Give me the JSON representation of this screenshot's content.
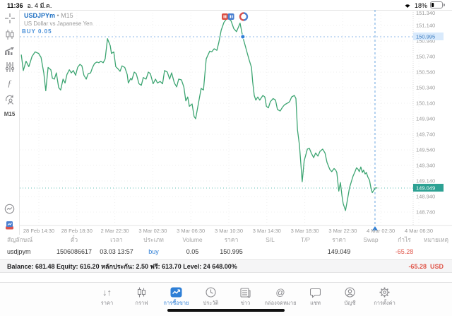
{
  "status_bar": {
    "time": "11:36",
    "date": "อ. 4 มี.ค.",
    "battery": "18%"
  },
  "chart": {
    "symbol": "USDJPYm",
    "timeframe": "M15",
    "title_suffix": "• M15",
    "description": "US Dollar vs Japanese Yen",
    "position_label": "BUY 0.05",
    "open_price_label": "150.995",
    "current_price_label": "149.049",
    "sidebar_timeframe": "M15"
  },
  "chart_data": {
    "type": "line",
    "title": "USDJPYm M15 line chart",
    "ylabel": "price",
    "ylim": [
      148.64,
      151.36
    ],
    "grid": true,
    "y_ticks": [
      "151.340",
      "151.140",
      "150.940",
      "150.740",
      "150.540",
      "150.340",
      "150.140",
      "149.940",
      "149.740",
      "149.540",
      "149.340",
      "149.140",
      "148.940",
      "148.740"
    ],
    "x_ticks": [
      "28 Feb 14:30",
      "28 Feb 18:30",
      "2 Mar 22:30",
      "3 Mar 02:30",
      "3 Mar 06:30",
      "3 Mar 10:30",
      "3 Mar 14:30",
      "3 Mar 18:30",
      "3 Mar 22:30",
      "4 Mar 02:30",
      "4 Mar 06:30"
    ],
    "open_price": 150.995,
    "current_price": 149.049,
    "marker_point": {
      "x": 0.567,
      "price": 150.995
    },
    "event_line_x": 0.903,
    "points": [
      [
        0.004,
        150.76
      ],
      [
        0.009,
        150.56
      ],
      [
        0.016,
        150.68
      ],
      [
        0.023,
        150.61
      ],
      [
        0.031,
        150.74
      ],
      [
        0.039,
        150.8
      ],
      [
        0.048,
        150.78
      ],
      [
        0.054,
        150.73
      ],
      [
        0.061,
        150.53
      ],
      [
        0.066,
        150.3
      ],
      [
        0.072,
        150.6
      ],
      [
        0.079,
        150.57
      ],
      [
        0.083,
        150.46
      ],
      [
        0.088,
        150.45
      ],
      [
        0.093,
        150.53
      ],
      [
        0.099,
        150.34
      ],
      [
        0.104,
        150.31
      ],
      [
        0.11,
        150.45
      ],
      [
        0.115,
        150.4
      ],
      [
        0.12,
        150.51
      ],
      [
        0.126,
        150.57
      ],
      [
        0.131,
        150.53
      ],
      [
        0.136,
        150.56
      ],
      [
        0.142,
        150.5
      ],
      [
        0.147,
        150.6
      ],
      [
        0.153,
        150.64
      ],
      [
        0.158,
        150.62
      ],
      [
        0.163,
        150.5
      ],
      [
        0.169,
        150.45
      ],
      [
        0.174,
        150.52
      ],
      [
        0.18,
        150.53
      ],
      [
        0.185,
        150.6
      ],
      [
        0.19,
        150.65
      ],
      [
        0.196,
        150.67
      ],
      [
        0.201,
        150.66
      ],
      [
        0.206,
        150.68
      ],
      [
        0.212,
        150.66
      ],
      [
        0.217,
        150.71
      ],
      [
        0.223,
        150.97
      ],
      [
        0.226,
        150.93
      ],
      [
        0.23,
        150.88
      ],
      [
        0.233,
        150.78
      ],
      [
        0.239,
        150.8
      ],
      [
        0.244,
        150.61
      ],
      [
        0.25,
        150.58
      ],
      [
        0.255,
        150.55
      ],
      [
        0.26,
        150.62
      ],
      [
        0.267,
        150.6
      ],
      [
        0.273,
        150.51
      ],
      [
        0.276,
        150.4
      ],
      [
        0.282,
        150.46
      ],
      [
        0.285,
        150.44
      ],
      [
        0.291,
        150.54
      ],
      [
        0.296,
        150.52
      ],
      [
        0.303,
        150.39
      ],
      [
        0.309,
        150.37
      ],
      [
        0.314,
        150.47
      ],
      [
        0.321,
        150.45
      ],
      [
        0.327,
        150.54
      ],
      [
        0.332,
        150.52
      ],
      [
        0.339,
        150.39
      ],
      [
        0.345,
        150.45
      ],
      [
        0.35,
        150.4
      ],
      [
        0.357,
        150.42
      ],
      [
        0.363,
        150.39
      ],
      [
        0.368,
        150.56
      ],
      [
        0.375,
        150.54
      ],
      [
        0.381,
        150.45
      ],
      [
        0.386,
        150.53
      ],
      [
        0.393,
        150.4
      ],
      [
        0.399,
        150.35
      ],
      [
        0.404,
        150.45
      ],
      [
        0.411,
        150.44
      ],
      [
        0.417,
        150.35
      ],
      [
        0.422,
        150.17
      ],
      [
        0.427,
        150.22
      ],
      [
        0.431,
        150.1
      ],
      [
        0.438,
        150.13
      ],
      [
        0.443,
        149.97
      ],
      [
        0.447,
        149.94
      ],
      [
        0.456,
        150.19
      ],
      [
        0.461,
        150.33
      ],
      [
        0.467,
        150.31
      ],
      [
        0.474,
        150.71
      ],
      [
        0.483,
        150.81
      ],
      [
        0.488,
        150.8
      ],
      [
        0.494,
        150.84
      ],
      [
        0.501,
        150.82
      ],
      [
        0.506,
        150.92
      ],
      [
        0.512,
        151.08
      ],
      [
        0.519,
        151.18
      ],
      [
        0.528,
        151.24
      ],
      [
        0.537,
        151.2
      ],
      [
        0.544,
        151.1
      ],
      [
        0.551,
        151.06
      ],
      [
        0.56,
        151.17
      ],
      [
        0.567,
        150.99
      ],
      [
        0.573,
        150.88
      ],
      [
        0.578,
        150.79
      ],
      [
        0.583,
        150.7
      ],
      [
        0.589,
        150.6
      ],
      [
        0.592,
        150.42
      ],
      [
        0.596,
        150.24
      ],
      [
        0.6,
        150.18
      ],
      [
        0.605,
        150.22
      ],
      [
        0.61,
        150.18
      ],
      [
        0.618,
        150.24
      ],
      [
        0.623,
        150.22
      ],
      [
        0.627,
        150.1
      ],
      [
        0.632,
        150.08
      ],
      [
        0.637,
        150.16
      ],
      [
        0.644,
        150.2
      ],
      [
        0.65,
        150.18
      ],
      [
        0.655,
        150.06
      ],
      [
        0.662,
        150.04
      ],
      [
        0.668,
        150.09
      ],
      [
        0.673,
        150.12
      ],
      [
        0.68,
        150.14
      ],
      [
        0.686,
        150.16
      ],
      [
        0.691,
        150.22
      ],
      [
        0.698,
        150.24
      ],
      [
        0.702,
        150.2
      ],
      [
        0.706,
        149.8
      ],
      [
        0.711,
        149.6
      ],
      [
        0.718,
        149.13
      ],
      [
        0.723,
        149.4
      ],
      [
        0.731,
        149.55
      ],
      [
        0.736,
        149.56
      ],
      [
        0.741,
        149.5
      ],
      [
        0.747,
        149.44
      ],
      [
        0.752,
        149.5
      ],
      [
        0.758,
        149.46
      ],
      [
        0.763,
        149.52
      ],
      [
        0.77,
        149.55
      ],
      [
        0.776,
        149.5
      ],
      [
        0.781,
        149.38
      ],
      [
        0.788,
        149.29
      ],
      [
        0.793,
        149.26
      ],
      [
        0.799,
        149.3
      ],
      [
        0.803,
        149.28
      ],
      [
        0.806,
        149.25
      ],
      [
        0.811,
        149.01
      ],
      [
        0.815,
        149.12
      ],
      [
        0.819,
        148.95
      ],
      [
        0.822,
        148.85
      ],
      [
        0.828,
        148.76
      ],
      [
        0.833,
        148.9
      ],
      [
        0.838,
        149.05
      ],
      [
        0.844,
        149.15
      ],
      [
        0.847,
        149.2
      ],
      [
        0.853,
        149.27
      ],
      [
        0.856,
        149.31
      ],
      [
        0.86,
        149.29
      ],
      [
        0.863,
        149.26
      ],
      [
        0.867,
        149.32
      ],
      [
        0.871,
        149.25
      ],
      [
        0.874,
        149.28
      ],
      [
        0.878,
        149.23
      ],
      [
        0.881,
        149.25
      ],
      [
        0.885,
        149.19
      ],
      [
        0.889,
        149.15
      ],
      [
        0.892,
        149.07
      ],
      [
        0.896,
        148.99
      ],
      [
        0.9,
        149.02
      ],
      [
        0.903,
        149.05
      ],
      [
        0.908,
        149.05
      ]
    ]
  },
  "positions": {
    "headers": [
      "สัญลักษณ์",
      "ตั๋ว",
      "เวลา",
      "ประเภท",
      "Volume",
      "ราคา",
      "S/L",
      "T/P",
      "ราคา",
      "Swap",
      "กำไร",
      "หมายเหตุ"
    ],
    "row": [
      "usdjpym",
      "1506086617",
      "03.03 13:57",
      "buy",
      "0.05",
      "150.995",
      "",
      "",
      "149.049",
      "",
      "-65.28",
      ""
    ]
  },
  "account": {
    "summary": "Balance: 681.48 Equity: 616.20 หลักประกัน: 2.50 ฟรี: 613.70 Level: 24 648.00%",
    "profit": "-65.28",
    "currency": "USD"
  },
  "tabbar": {
    "items": [
      "ราคา",
      "กราฟ",
      "การซื้อขาย",
      "ประวัติ",
      "ข่าว",
      "กล่องจดหมาย",
      "แชท",
      "บัญชี",
      "การตั้งค่า"
    ],
    "active_index": 2
  },
  "colors": {
    "accent": "#2f7fd6",
    "price_line": "#3da572",
    "bid_badge": "#2da193",
    "open_badge_bg": "#d9eafc",
    "loss": "#e0564a"
  }
}
